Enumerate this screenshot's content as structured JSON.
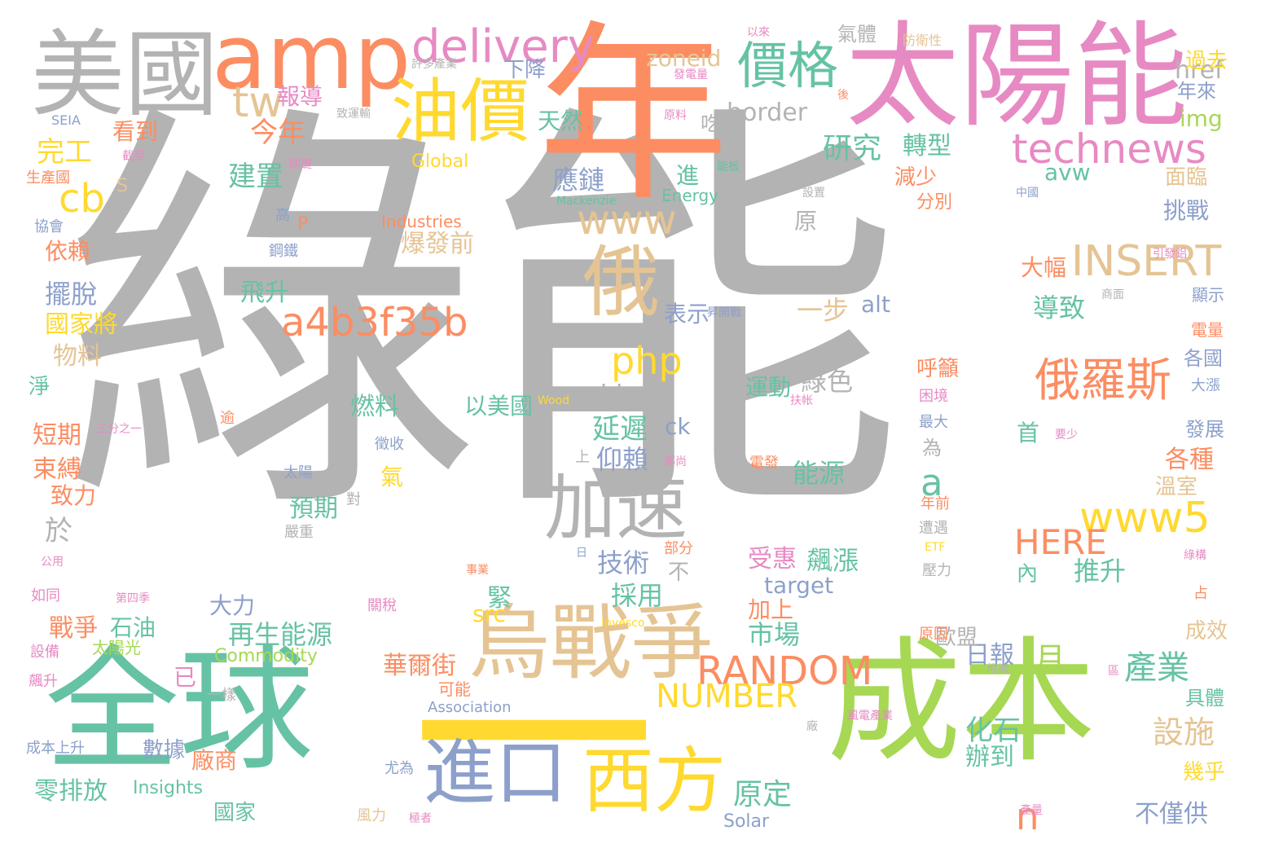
{
  "palette": {
    "gray": "#b3b3b3",
    "orange": "#fc8d62",
    "green": "#66c2a5",
    "lime": "#a6d854",
    "yellow": "#ffd92f",
    "blue": "#8da0cb",
    "pink": "#e78ac3",
    "tan": "#e5c494"
  },
  "words": [
    {
      "text": "綠能",
      "color": "#b3b3b3",
      "size": "big"
    },
    {
      "text": "年",
      "color": "#fc8d62",
      "size": "huge"
    },
    {
      "text": "太陽能",
      "color": "#e78ac3",
      "size": "large"
    },
    {
      "text": "美國",
      "color": "#b3b3b3",
      "size": "large"
    },
    {
      "text": "amp",
      "color": "#fc8d62",
      "size": "large"
    },
    {
      "text": "全球",
      "color": "#66c2a5",
      "size": "huge"
    },
    {
      "text": "成本",
      "color": "#a6d854",
      "size": "huge"
    },
    {
      "text": "一",
      "color": "#ffd92f",
      "size": "huge"
    },
    {
      "text": "烏戰爭",
      "color": "#e5c494",
      "size": "large"
    },
    {
      "text": "油價",
      "color": "#ffd92f",
      "size": "large"
    },
    {
      "text": "俄",
      "color": "#e5c494",
      "size": "large"
    },
    {
      "text": "加速",
      "color": "#b3b3b3",
      "size": "large"
    },
    {
      "text": "進口",
      "color": "#8da0cb",
      "size": "large"
    },
    {
      "text": "西方",
      "color": "#ffd92f",
      "size": "large"
    },
    {
      "text": "價格",
      "color": "#66c2a5",
      "size": "medium"
    },
    {
      "text": "delivery",
      "color": "#e78ac3",
      "size": "medium"
    },
    {
      "text": "technews",
      "color": "#e78ac3",
      "size": "medium"
    },
    {
      "text": "www",
      "color": "#e5c494",
      "size": "medium"
    },
    {
      "text": "a4b3f35b",
      "color": "#fc8d62",
      "size": "medium"
    },
    {
      "text": "INSERT",
      "color": "#e5c494",
      "size": "medium"
    },
    {
      "text": "俄羅斯",
      "color": "#fc8d62",
      "size": "medium"
    },
    {
      "text": "www5",
      "color": "#ffd92f",
      "size": "medium"
    },
    {
      "text": "RANDOM",
      "color": "#fc8d62",
      "size": "medium"
    },
    {
      "text": "NUMBER",
      "color": "#ffd92f",
      "size": "medium"
    },
    {
      "text": "php",
      "color": "#ffd92f",
      "size": "medium"
    },
    {
      "text": "HERE",
      "color": "#fc8d62",
      "size": "medium"
    },
    {
      "text": "tw",
      "color": "#e5c494",
      "size": "medium"
    },
    {
      "text": "cb",
      "color": "#ffd92f",
      "size": "medium"
    },
    {
      "text": "a",
      "color": "#66c2a5",
      "size": "medium"
    },
    {
      "text": "n",
      "color": "#fc8d62",
      "size": "medium"
    },
    {
      "text": "zoneid",
      "color": "#e5c494",
      "size": "small"
    },
    {
      "text": "border",
      "color": "#b3b3b3",
      "size": "small"
    },
    {
      "text": "href",
      "color": "#b3b3b3",
      "size": "small"
    },
    {
      "text": "img",
      "color": "#a6d854",
      "size": "small"
    },
    {
      "text": "avw",
      "color": "#66c2a5",
      "size": "small"
    },
    {
      "text": "blank",
      "color": "#b3b3b3",
      "size": "small"
    },
    {
      "text": "target",
      "color": "#8da0cb",
      "size": "small"
    },
    {
      "text": "alt",
      "color": "#8da0cb",
      "size": "small"
    },
    {
      "text": "src",
      "color": "#ffd92f",
      "size": "small"
    },
    {
      "text": "ck",
      "color": "#8da0cb",
      "size": "small"
    },
    {
      "text": "Global",
      "color": "#ffd92f",
      "size": "tiny"
    },
    {
      "text": "Industries",
      "color": "#fc8d62",
      "size": "tiny"
    },
    {
      "text": "Energy",
      "color": "#66c2a5",
      "size": "tiny"
    },
    {
      "text": "Mackenzie",
      "color": "#66c2a5",
      "size": "micro"
    },
    {
      "text": "Commodity",
      "color": "#a6d854",
      "size": "tiny"
    },
    {
      "text": "Association",
      "color": "#8da0cb",
      "size": "tiny"
    },
    {
      "text": "Insights",
      "color": "#66c2a5",
      "size": "tiny"
    },
    {
      "text": "Solar",
      "color": "#8da0cb",
      "size": "tiny"
    },
    {
      "text": "Invesco",
      "color": "#ffd92f",
      "size": "micro"
    },
    {
      "text": "Wood",
      "color": "#ffd92f",
      "size": "micro"
    },
    {
      "text": "SEIA",
      "color": "#8da0cb",
      "size": "micro"
    },
    {
      "text": "ETF",
      "color": "#ffd92f",
      "size": "micro"
    },
    {
      "text": "今年",
      "color": "#fc8d62",
      "size": "small"
    },
    {
      "text": "完工",
      "color": "#ffd92f",
      "size": "small"
    },
    {
      "text": "研究",
      "color": "#66c2a5",
      "size": "small"
    },
    {
      "text": "轉型",
      "color": "#66c2a5",
      "size": "small"
    },
    {
      "text": "應鏈",
      "color": "#8da0cb",
      "size": "small"
    },
    {
      "text": "建置",
      "color": "#66c2a5",
      "size": "small"
    },
    {
      "text": "延遲",
      "color": "#66c2a5",
      "size": "small"
    },
    {
      "text": "仰賴",
      "color": "#8da0cb",
      "size": "small"
    },
    {
      "text": "產業",
      "color": "#66c2a5",
      "size": "small"
    },
    {
      "text": "設施",
      "color": "#e5c494",
      "size": "small"
    },
    {
      "text": "月",
      "color": "#a6d854",
      "size": "small"
    },
    {
      "text": "日報",
      "color": "#8da0cb",
      "size": "small"
    },
    {
      "text": "化石",
      "color": "#66c2a5",
      "size": "small"
    },
    {
      "text": "辦到",
      "color": "#66c2a5",
      "size": "small"
    },
    {
      "text": "不僅供",
      "color": "#8da0cb",
      "size": "small"
    },
    {
      "text": "原定",
      "color": "#66c2a5",
      "size": "small"
    },
    {
      "text": "再生能源",
      "color": "#66c2a5",
      "size": "small"
    },
    {
      "text": "華爾街",
      "color": "#fc8d62",
      "size": "small"
    },
    {
      "text": "市場",
      "color": "#66c2a5",
      "size": "small"
    },
    {
      "text": "能源",
      "color": "#66c2a5",
      "size": "small"
    },
    {
      "text": "技術",
      "color": "#8da0cb",
      "size": "small"
    },
    {
      "text": "採用",
      "color": "#66c2a5",
      "size": "small"
    },
    {
      "text": "受惠",
      "color": "#e78ac3",
      "size": "small"
    },
    {
      "text": "飆漲",
      "color": "#66c2a5",
      "size": "small"
    },
    {
      "text": "爆發前",
      "color": "#e5c494",
      "size": "small"
    },
    {
      "text": "燃料",
      "color": "#66c2a5",
      "size": "small"
    },
    {
      "text": "緊",
      "color": "#66c2a5",
      "size": "small"
    },
    {
      "text": "預期",
      "color": "#66c2a5",
      "size": "small"
    },
    {
      "text": "以美國",
      "color": "#66c2a5",
      "size": "small"
    },
    {
      "text": "綠色",
      "color": "#b3b3b3",
      "size": "small"
    },
    {
      "text": "導致",
      "color": "#66c2a5",
      "size": "small"
    },
    {
      "text": "推升",
      "color": "#66c2a5",
      "size": "small"
    },
    {
      "text": "大幅",
      "color": "#fc8d62",
      "size": "small"
    },
    {
      "text": "一步",
      "color": "#e5c494",
      "size": "small"
    },
    {
      "text": "表示",
      "color": "#8da0cb",
      "size": "small"
    },
    {
      "text": "飛升",
      "color": "#66c2a5",
      "size": "small"
    },
    {
      "text": "擺脫",
      "color": "#8da0cb",
      "size": "small"
    },
    {
      "text": "國家將",
      "color": "#ffd92f",
      "size": "small"
    },
    {
      "text": "物料",
      "color": "#e5c494",
      "size": "small"
    },
    {
      "text": "依賴",
      "color": "#fc8d62",
      "size": "small"
    },
    {
      "text": "短期",
      "color": "#fc8d62",
      "size": "small"
    },
    {
      "text": "束縛",
      "color": "#fc8d62",
      "size": "small"
    },
    {
      "text": "致力",
      "color": "#fc8d62",
      "size": "small"
    },
    {
      "text": "於",
      "color": "#b3b3b3",
      "size": "small"
    },
    {
      "text": "戰爭",
      "color": "#fc8d62",
      "size": "small"
    },
    {
      "text": "石油",
      "color": "#66c2a5",
      "size": "small"
    },
    {
      "text": "大力",
      "color": "#8da0cb",
      "size": "small"
    },
    {
      "text": "零排放",
      "color": "#66c2a5",
      "size": "small"
    },
    {
      "text": "數據",
      "color": "#8da0cb",
      "size": "small"
    },
    {
      "text": "廠商",
      "color": "#fc8d62",
      "size": "small"
    },
    {
      "text": "國家",
      "color": "#66c2a5",
      "size": "small"
    },
    {
      "text": "報導",
      "color": "#e78ac3",
      "size": "small"
    },
    {
      "text": "看到",
      "color": "#fc8d62",
      "size": "small"
    },
    {
      "text": "天然",
      "color": "#66c2a5",
      "size": "small"
    },
    {
      "text": "下降",
      "color": "#8da0cb",
      "size": "small"
    },
    {
      "text": "吃",
      "color": "#b3b3b3",
      "size": "small"
    },
    {
      "text": "氣體",
      "color": "#b3b3b3",
      "size": "small"
    },
    {
      "text": "過去",
      "color": "#ffd92f",
      "size": "small"
    },
    {
      "text": "年來",
      "color": "#8da0cb",
      "size": "small"
    },
    {
      "text": "面臨",
      "color": "#e5c494",
      "size": "small"
    },
    {
      "text": "挑戰",
      "color": "#8da0cb",
      "size": "small"
    },
    {
      "text": "分別",
      "color": "#fc8d62",
      "size": "small"
    },
    {
      "text": "減少",
      "color": "#fc8d62",
      "size": "small"
    },
    {
      "text": "原",
      "color": "#b3b3b3",
      "size": "small"
    },
    {
      "text": "進",
      "color": "#66c2a5",
      "size": "small"
    },
    {
      "text": "呼籲",
      "color": "#fc8d62",
      "size": "small"
    },
    {
      "text": "各國",
      "color": "#8da0cb",
      "size": "small"
    },
    {
      "text": "各種",
      "color": "#fc8d62",
      "size": "small"
    },
    {
      "text": "溫室",
      "color": "#e5c494",
      "size": "small"
    },
    {
      "text": "首",
      "color": "#66c2a5",
      "size": "small"
    },
    {
      "text": "為",
      "color": "#b3b3b3",
      "size": "small"
    },
    {
      "text": "內",
      "color": "#66c2a5",
      "size": "small"
    },
    {
      "text": "歐盟",
      "color": "#b3b3b3",
      "size": "small"
    },
    {
      "text": "成效",
      "color": "#e5c494",
      "size": "small"
    },
    {
      "text": "具體",
      "color": "#66c2a5",
      "size": "small"
    },
    {
      "text": "幾乎",
      "color": "#ffd92f",
      "size": "small"
    },
    {
      "text": "加上",
      "color": "#fc8d62",
      "size": "small"
    },
    {
      "text": "已",
      "color": "#e78ac3",
      "size": "small"
    },
    {
      "text": "可能",
      "color": "#fc8d62",
      "size": "tiny"
    },
    {
      "text": "不",
      "color": "#b3b3b3",
      "size": "small"
    },
    {
      "text": "氣",
      "color": "#ffd92f",
      "size": "small"
    },
    {
      "text": "淨",
      "color": "#66c2a5",
      "size": "small"
    },
    {
      "text": "S",
      "color": "#e5c494",
      "size": "small"
    },
    {
      "text": "P",
      "color": "#fc8d62",
      "size": "small"
    },
    {
      "text": "高",
      "color": "#8da0cb",
      "size": "tiny"
    },
    {
      "text": "鋼鐵",
      "color": "#8da0cb",
      "size": "tiny"
    },
    {
      "text": "上",
      "color": "#b3b3b3",
      "size": "tiny"
    },
    {
      "text": "太陽",
      "color": "#8da0cb",
      "size": "tiny"
    },
    {
      "text": "徵收",
      "color": "#8da0cb",
      "size": "tiny"
    },
    {
      "text": "逾",
      "color": "#fc8d62",
      "size": "tiny"
    },
    {
      "text": "對",
      "color": "#b3b3b3",
      "size": "tiny"
    },
    {
      "text": "嚴重",
      "color": "#b3b3b3",
      "size": "tiny"
    },
    {
      "text": "年前",
      "color": "#fc8d62",
      "size": "tiny"
    },
    {
      "text": "遭遇",
      "color": "#b3b3b3",
      "size": "tiny"
    },
    {
      "text": "壓力",
      "color": "#b3b3b3",
      "size": "tiny"
    },
    {
      "text": "原因",
      "color": "#fc8d62",
      "size": "tiny"
    },
    {
      "text": "根據",
      "color": "#b3b3b3",
      "size": "micro"
    },
    {
      "text": "廠",
      "color": "#b3b3b3",
      "size": "micro"
    },
    {
      "text": "尤為",
      "color": "#8da0cb",
      "size": "tiny"
    },
    {
      "text": "風力",
      "color": "#e5c494",
      "size": "tiny"
    },
    {
      "text": "關稅",
      "color": "#e78ac3",
      "size": "tiny"
    },
    {
      "text": "太陽光",
      "color": "#a6d854",
      "size": "tiny"
    },
    {
      "text": "設備",
      "color": "#e78ac3",
      "size": "tiny"
    },
    {
      "text": "如同",
      "color": "#e78ac3",
      "size": "tiny"
    },
    {
      "text": "飆升",
      "color": "#e78ac3",
      "size": "tiny"
    },
    {
      "text": "成本上升",
      "color": "#8da0cb",
      "size": "tiny"
    },
    {
      "text": "一樣",
      "color": "#b3b3b3",
      "size": "tiny"
    },
    {
      "text": "協會",
      "color": "#8da0cb",
      "size": "tiny"
    },
    {
      "text": "生產國",
      "color": "#fc8d62",
      "size": "tiny"
    },
    {
      "text": "公用",
      "color": "#e78ac3",
      "size": "micro"
    },
    {
      "text": "部分",
      "color": "#fc8d62",
      "size": "tiny"
    },
    {
      "text": "占",
      "color": "#fc8d62",
      "size": "tiny"
    },
    {
      "text": "電發",
      "color": "#fc8d62",
      "size": "tiny"
    },
    {
      "text": "運動",
      "color": "#66c2a5",
      "size": "small"
    },
    {
      "text": "發展",
      "color": "#8da0cb",
      "size": "tiny"
    },
    {
      "text": "最大",
      "color": "#8da0cb",
      "size": "tiny"
    },
    {
      "text": "困境",
      "color": "#e78ac3",
      "size": "tiny"
    },
    {
      "text": "大漲",
      "color": "#8da0cb",
      "size": "tiny"
    },
    {
      "text": "電量",
      "color": "#fc8d62",
      "size": "tiny"
    },
    {
      "text": "顯示",
      "color": "#8da0cb",
      "size": "tiny"
    },
    {
      "text": "中國",
      "color": "#8da0cb",
      "size": "micro"
    },
    {
      "text": "原料",
      "color": "#e78ac3",
      "size": "micro"
    },
    {
      "text": "發電量",
      "color": "#e78ac3",
      "size": "micro"
    },
    {
      "text": "以來",
      "color": "#e78ac3",
      "size": "micro"
    },
    {
      "text": "防衛性",
      "color": "#e5c494",
      "size": "micro"
    },
    {
      "text": "許多產業",
      "color": "#b3b3b3",
      "size": "micro"
    },
    {
      "text": "致運輸",
      "color": "#b3b3b3",
      "size": "micro"
    },
    {
      "text": "能板",
      "color": "#66c2a5",
      "size": "micro"
    },
    {
      "text": "關鍵",
      "color": "#e78ac3",
      "size": "micro"
    },
    {
      "text": "截至",
      "color": "#e78ac3",
      "size": "micro"
    },
    {
      "text": "三分之一",
      "color": "#e78ac3",
      "size": "micro"
    },
    {
      "text": "第四季",
      "color": "#e78ac3",
      "size": "micro"
    },
    {
      "text": "事業",
      "color": "#fc8d62",
      "size": "micro"
    },
    {
      "text": "日",
      "color": "#8da0cb",
      "size": "micro"
    },
    {
      "text": "後",
      "color": "#fc8d62",
      "size": "micro"
    },
    {
      "text": "設置",
      "color": "#b3b3b3",
      "size": "micro"
    },
    {
      "text": "引發鋁",
      "color": "#e78ac3",
      "size": "micro"
    },
    {
      "text": "商面",
      "color": "#b3b3b3",
      "size": "micro"
    },
    {
      "text": "昇開戰",
      "color": "#8da0cb",
      "size": "micro"
    },
    {
      "text": "扶帐",
      "color": "#e78ac3",
      "size": "micro"
    },
    {
      "text": "要少",
      "color": "#e78ac3",
      "size": "micro"
    },
    {
      "text": "邪尚",
      "color": "#e78ac3",
      "size": "micro"
    },
    {
      "text": "風電產業",
      "color": "#e78ac3",
      "size": "micro"
    },
    {
      "text": "產量",
      "color": "#e78ac3",
      "size": "micro"
    },
    {
      "text": "極者",
      "color": "#e78ac3",
      "size": "micro"
    },
    {
      "text": "區",
      "color": "#e78ac3",
      "size": "micro"
    },
    {
      "text": "綠構",
      "color": "#e78ac3",
      "size": "micro"
    }
  ]
}
